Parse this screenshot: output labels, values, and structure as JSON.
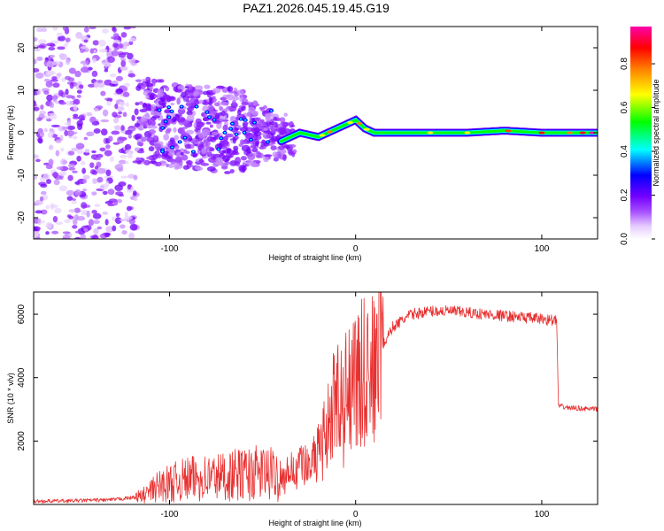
{
  "title": "PAZ1.2026.045.19.45.G19",
  "chart_data": [
    {
      "type": "heatmap",
      "name": "spectrogram",
      "xlabel": "Height of straight line (km)",
      "ylabel": "Frequency (Hz)",
      "xlim": [
        -173,
        130
      ],
      "ylim": [
        -25,
        25
      ],
      "xticks": [
        -100,
        0,
        100
      ],
      "yticks": [
        -20,
        -10,
        0,
        10,
        20
      ],
      "xtick_labels": [
        "-100",
        "0",
        "100"
      ],
      "ytick_labels": [
        "-20",
        "-10",
        "0",
        "10",
        "20"
      ],
      "colorbar": {
        "label": "Normalized spectral amplitude",
        "range": [
          0,
          0.97
        ],
        "ticks": [
          0,
          0.2,
          0.4,
          0.6,
          0.8
        ],
        "tick_labels": [
          "0.0",
          "0.2",
          "0.4",
          "0.6",
          "0.8"
        ],
        "colormap": [
          "#ffffff",
          "#e6ccff",
          "#a64dff",
          "#7300ff",
          "#0000ff",
          "#00ffff",
          "#00ff00",
          "#ffff00",
          "#ff8000",
          "#ff0000",
          "#ff00aa"
        ]
      },
      "signal_trace": {
        "description_values": "dominant frequency ridge (Hz) vs height (km)",
        "x": [
          -40,
          -30,
          -20,
          -10,
          0,
          5,
          10,
          20,
          40,
          60,
          80,
          100,
          110,
          130
        ],
        "y": [
          -2,
          0,
          -1,
          1,
          3,
          1,
          0,
          0,
          0,
          0,
          0.5,
          0,
          0,
          0
        ]
      }
    },
    {
      "type": "line",
      "name": "snr",
      "xlabel": "Height of straight line (km)",
      "ylabel": "SNR (10 * v/v)",
      "xlim": [
        -173,
        130
      ],
      "ylim": [
        0,
        6700
      ],
      "xticks": [
        -100,
        0,
        100
      ],
      "yticks": [
        2000,
        4000,
        6000
      ],
      "xtick_labels": [
        "-100",
        "0",
        "100"
      ],
      "ytick_labels": [
        "2000",
        "4000",
        "6000"
      ],
      "color": "#e83030",
      "series": [
        {
          "name": "SNR",
          "x": [
            -173,
            -150,
            -130,
            -115,
            -105,
            -90,
            -70,
            -50,
            -40,
            -30,
            -20,
            -15,
            -10,
            -5,
            0,
            5,
            10,
            20,
            30,
            40,
            50,
            60,
            70,
            80,
            90,
            100,
            108,
            109,
            115,
            130
          ],
          "y": [
            100,
            120,
            150,
            250,
            600,
            800,
            900,
            1000,
            900,
            1200,
            1800,
            2500,
            3500,
            3800,
            4000,
            4300,
            4500,
            5600,
            6000,
            6100,
            6100,
            6050,
            6000,
            5950,
            5900,
            5850,
            5800,
            3100,
            3050,
            3000
          ]
        }
      ]
    }
  ]
}
